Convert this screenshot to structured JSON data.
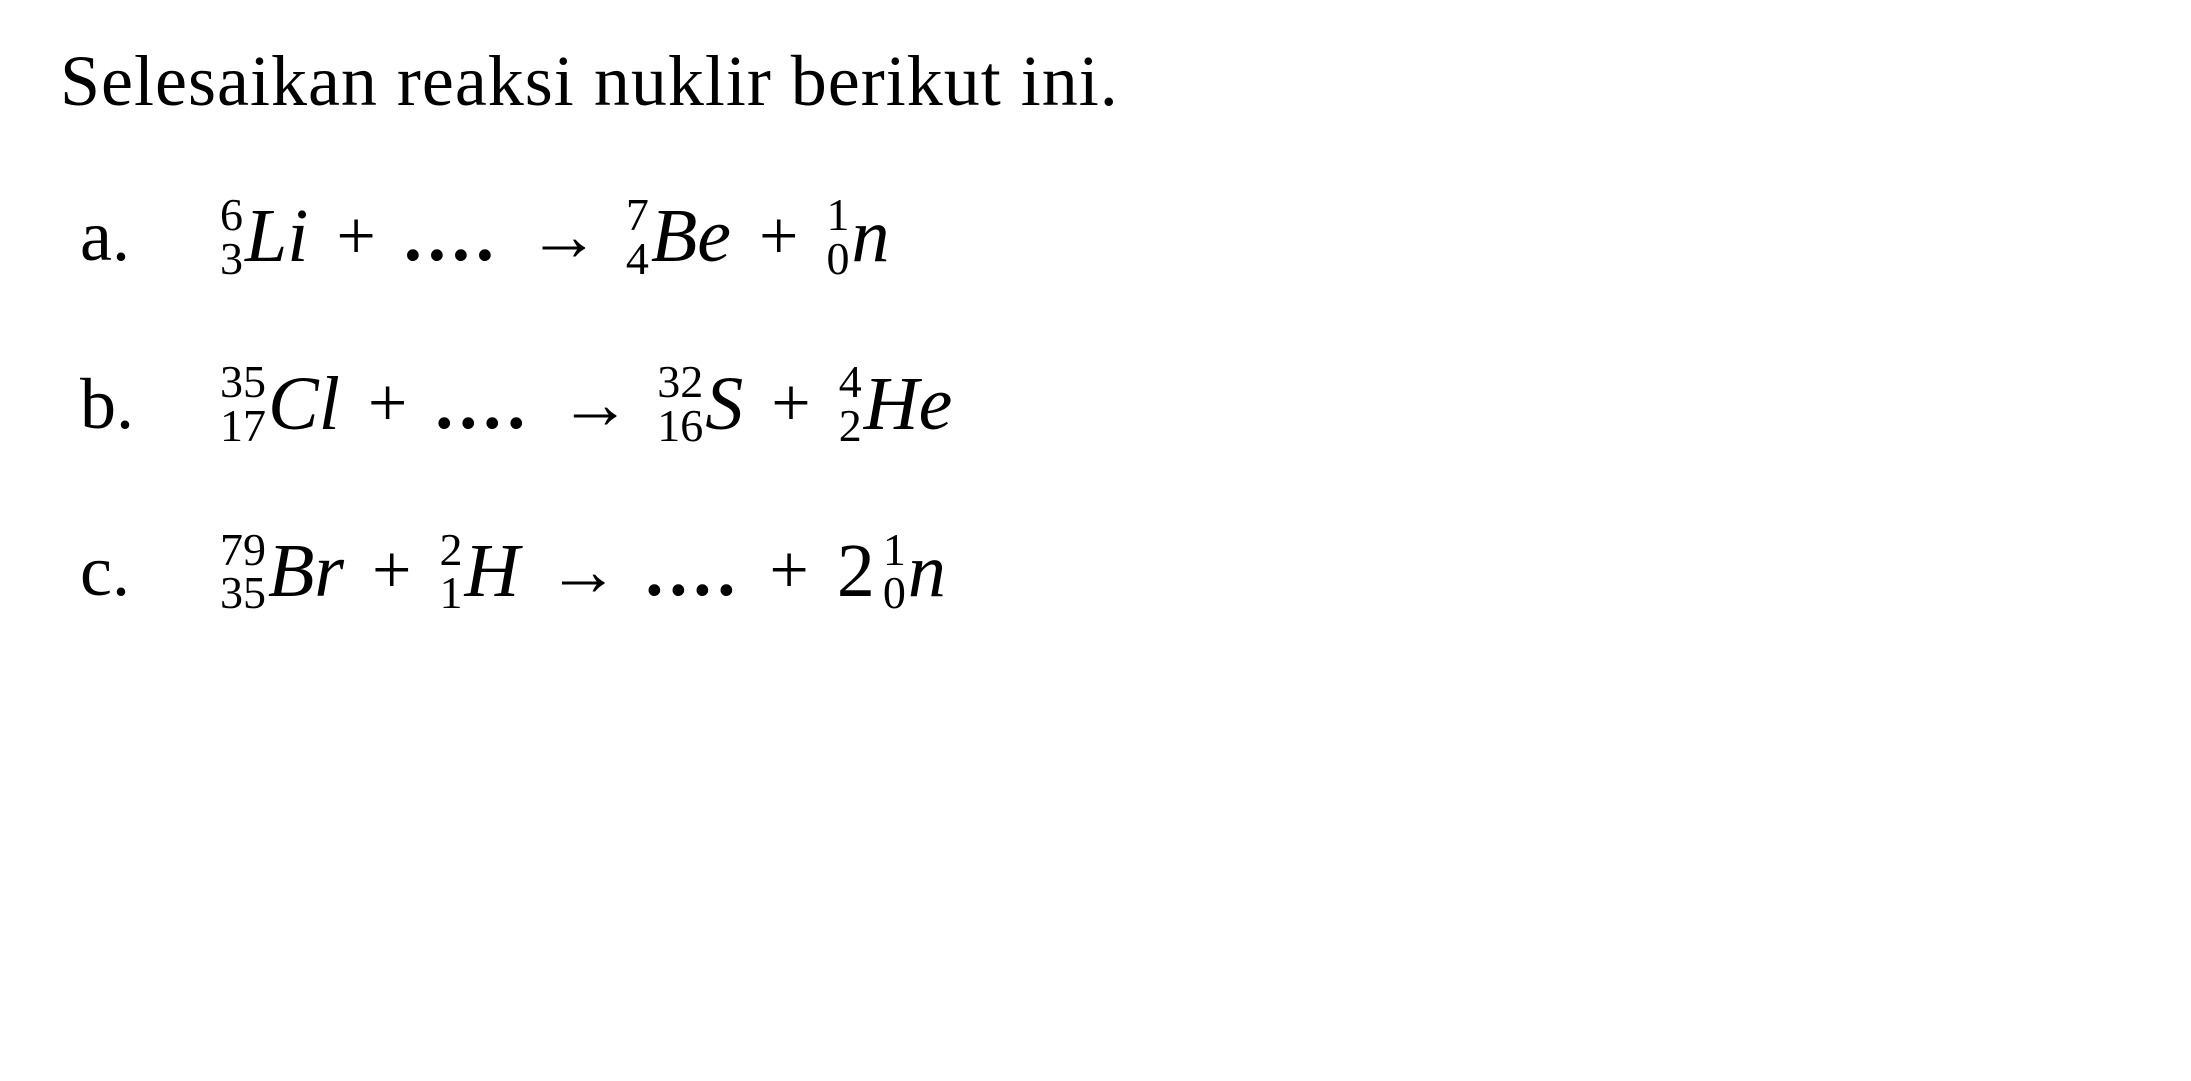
{
  "title": "Selesaikan reaksi nuklir berikut ini.",
  "colors": {
    "background": "#ffffff",
    "text": "#000000"
  },
  "typography": {
    "font_family": "Times New Roman, serif",
    "title_fontsize": 72,
    "label_fontsize": 72,
    "symbol_fontsize": 76,
    "script_fontsize": 46
  },
  "equations": [
    {
      "label": "a.",
      "left": [
        {
          "type": "element",
          "mass": "6",
          "atomic": "3",
          "symbol": "Li"
        },
        {
          "type": "plus"
        },
        {
          "type": "dots"
        }
      ],
      "right": [
        {
          "type": "element",
          "mass": "7",
          "atomic": "4",
          "symbol": "Be"
        },
        {
          "type": "plus"
        },
        {
          "type": "element",
          "mass": "1",
          "atomic": "0",
          "symbol": "n"
        }
      ]
    },
    {
      "label": "b.",
      "left": [
        {
          "type": "element",
          "mass": "35",
          "atomic": "17",
          "symbol": "Cl"
        },
        {
          "type": "plus"
        },
        {
          "type": "dots"
        }
      ],
      "right": [
        {
          "type": "element",
          "mass": "32",
          "atomic": "16",
          "symbol": "S"
        },
        {
          "type": "plus"
        },
        {
          "type": "element",
          "mass": "4",
          "atomic": "2",
          "symbol": "He"
        }
      ]
    },
    {
      "label": "c.",
      "left": [
        {
          "type": "element",
          "mass": "79",
          "atomic": "35",
          "symbol": "Br"
        },
        {
          "type": "plus"
        },
        {
          "type": "element",
          "mass": "2",
          "atomic": "1",
          "symbol": "H"
        }
      ],
      "right": [
        {
          "type": "dots"
        },
        {
          "type": "plus"
        },
        {
          "type": "coef_element",
          "coef": "2",
          "mass": "1",
          "atomic": "0",
          "symbol": "n"
        }
      ]
    }
  ],
  "symbols": {
    "plus": "+",
    "arrow": "→",
    "dots": "...."
  }
}
